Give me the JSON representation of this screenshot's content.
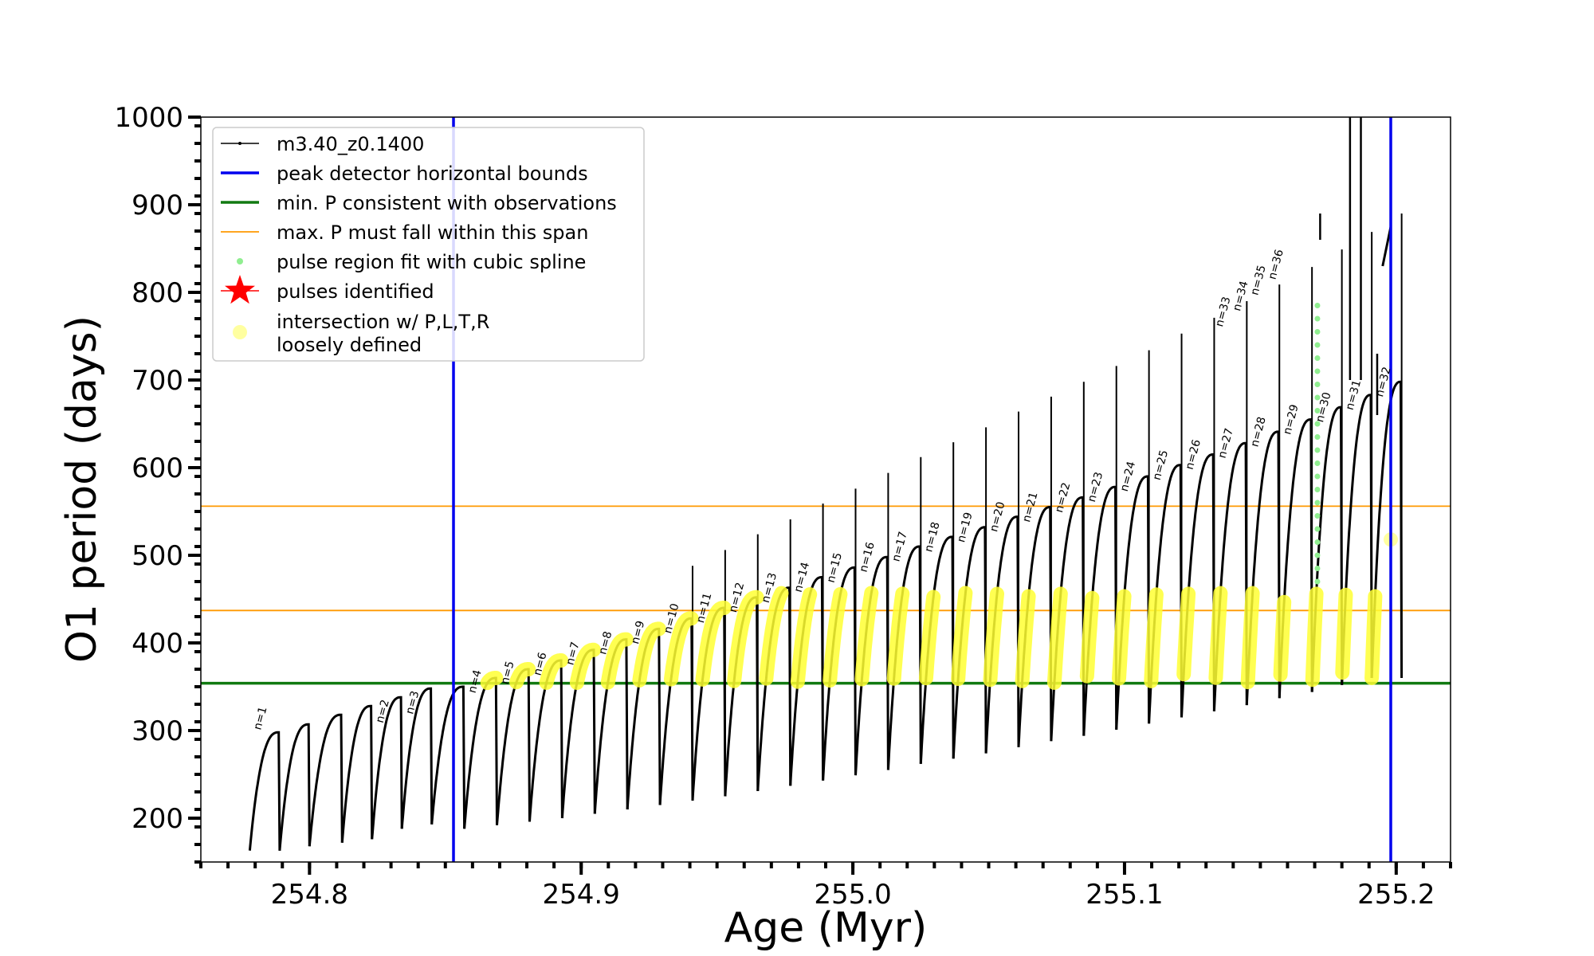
{
  "chart_data": {
    "type": "line",
    "xlabel": "Age (Myr)",
    "ylabel": "O1 period (days)",
    "xlim": [
      254.76,
      255.22
    ],
    "ylim": [
      150,
      1000
    ],
    "x_ticks": [
      254.8,
      254.9,
      255.0,
      255.1,
      255.2
    ],
    "x_tick_labels": [
      "254.8",
      "254.9",
      "255.0",
      "255.1",
      "255.2"
    ],
    "y_ticks": [
      200,
      300,
      400,
      500,
      600,
      700,
      800,
      900,
      1000
    ],
    "y_tick_labels": [
      "200",
      "300",
      "400",
      "500",
      "600",
      "700",
      "800",
      "900",
      "1000"
    ],
    "legend_position": "upper-left",
    "series": [
      {
        "name": "m3.40_z0.1400",
        "kind": "track",
        "color": "#000000"
      },
      {
        "name": "peak detector horizontal bounds",
        "kind": "vline",
        "color": "#0000ee",
        "values": [
          254.853,
          255.198
        ]
      },
      {
        "name": "min. P consistent with observations",
        "kind": "hline",
        "color": "#117a11",
        "values": [
          354
        ]
      },
      {
        "name": "max. P must fall within this span",
        "kind": "hline",
        "color": "#ff9900",
        "values": [
          437,
          556
        ]
      },
      {
        "name": "pulse region fit with cubic spline",
        "kind": "scatter",
        "color": "#90ee90"
      },
      {
        "name": "pulses identified",
        "kind": "marker",
        "color": "#ff0000"
      },
      {
        "name": "intersection w/ P,L,T,R\nloosely defined",
        "kind": "scatter",
        "color": "#ffff00"
      }
    ],
    "legend_lines": [
      [
        "m3.40_z0.1400"
      ],
      [
        "peak detector horizontal bounds"
      ],
      [
        "min. P consistent with observations"
      ],
      [
        "max. P must fall within this span"
      ],
      [
        "pulse region fit with cubic spline"
      ],
      [
        "pulses identified"
      ],
      [
        "intersection w/ P,L,T,R",
        "loosely defined"
      ]
    ],
    "pulses": [
      {
        "n": 1,
        "t": 254.778,
        "min": 163,
        "max": 298,
        "label": "n=1"
      },
      {
        "n": 2,
        "t": 254.789,
        "min": 163,
        "max": 307,
        "label": ""
      },
      {
        "n": 3,
        "t": 254.8,
        "min": 168,
        "max": 318,
        "label": ""
      },
      {
        "n": 4,
        "t": 254.812,
        "min": 172,
        "max": 328,
        "label": ""
      },
      {
        "n": 5,
        "t": 254.823,
        "min": 176,
        "max": 338,
        "label": "n=2"
      },
      {
        "n": 6,
        "t": 254.834,
        "min": 188,
        "max": 348,
        "label": "n=3"
      },
      {
        "n": 7,
        "t": 254.845,
        "min": 193,
        "max": 350,
        "label": ""
      },
      {
        "n": 8,
        "t": 254.857,
        "min": 188,
        "max": 360,
        "label": "n=4"
      },
      {
        "n": 9,
        "t": 254.869,
        "min": 192,
        "max": 370,
        "label": "n=5"
      },
      {
        "n": 10,
        "t": 254.881,
        "min": 196,
        "max": 380,
        "label": "n=6"
      },
      {
        "n": 11,
        "t": 254.893,
        "min": 200,
        "max": 392,
        "label": "n=7"
      },
      {
        "n": 12,
        "t": 254.905,
        "min": 205,
        "max": 404,
        "label": "n=8"
      },
      {
        "n": 13,
        "t": 254.917,
        "min": 210,
        "max": 416,
        "label": "n=9"
      },
      {
        "n": 14,
        "t": 254.929,
        "min": 215,
        "max": 428,
        "label": "n=10"
      },
      {
        "n": 15,
        "t": 254.941,
        "min": 220,
        "max": 440,
        "label": "n=11"
      },
      {
        "n": 16,
        "t": 254.953,
        "min": 225,
        "max": 452,
        "label": "n=12"
      },
      {
        "n": 17,
        "t": 254.965,
        "min": 231,
        "max": 463,
        "label": "n=13"
      },
      {
        "n": 18,
        "t": 254.977,
        "min": 237,
        "max": 475,
        "label": "n=14"
      },
      {
        "n": 19,
        "t": 254.989,
        "min": 243,
        "max": 486,
        "label": "n=15"
      },
      {
        "n": 20,
        "t": 255.001,
        "min": 249,
        "max": 498,
        "label": "n=16"
      },
      {
        "n": 21,
        "t": 255.013,
        "min": 255,
        "max": 510,
        "label": "n=17"
      },
      {
        "n": 22,
        "t": 255.025,
        "min": 262,
        "max": 521,
        "label": "n=18"
      },
      {
        "n": 23,
        "t": 255.037,
        "min": 268,
        "max": 532,
        "label": "n=19"
      },
      {
        "n": 24,
        "t": 255.049,
        "min": 274,
        "max": 544,
        "label": "n=20"
      },
      {
        "n": 25,
        "t": 255.061,
        "min": 281,
        "max": 555,
        "label": "n=21"
      },
      {
        "n": 26,
        "t": 255.073,
        "min": 288,
        "max": 566,
        "label": "n=22"
      },
      {
        "n": 27,
        "t": 255.085,
        "min": 294,
        "max": 578,
        "label": "n=23"
      },
      {
        "n": 28,
        "t": 255.097,
        "min": 301,
        "max": 590,
        "label": "n=24"
      },
      {
        "n": 29,
        "t": 255.109,
        "min": 308,
        "max": 603,
        "label": "n=25"
      },
      {
        "n": 30,
        "t": 255.121,
        "min": 315,
        "max": 615,
        "label": "n=26"
      },
      {
        "n": 31,
        "t": 255.133,
        "min": 322,
        "max": 628,
        "label": "n=27"
      },
      {
        "n": 32,
        "t": 255.145,
        "min": 329,
        "max": 641,
        "label": "n=28"
      },
      {
        "n": 33,
        "t": 255.157,
        "min": 337,
        "max": 655,
        "label": "n=29"
      },
      {
        "n": 34,
        "t": 255.169,
        "min": 344,
        "max": 669,
        "label": "n=30"
      },
      {
        "n": 35,
        "t": 255.18,
        "min": 352,
        "max": 683,
        "label": "n=31"
      },
      {
        "n": 36,
        "t": 255.191,
        "min": 360,
        "max": 698,
        "label": "n=32"
      }
    ],
    "extra_pulse_labels": [
      "n=33",
      "n=34",
      "n=35",
      "n=36"
    ]
  }
}
